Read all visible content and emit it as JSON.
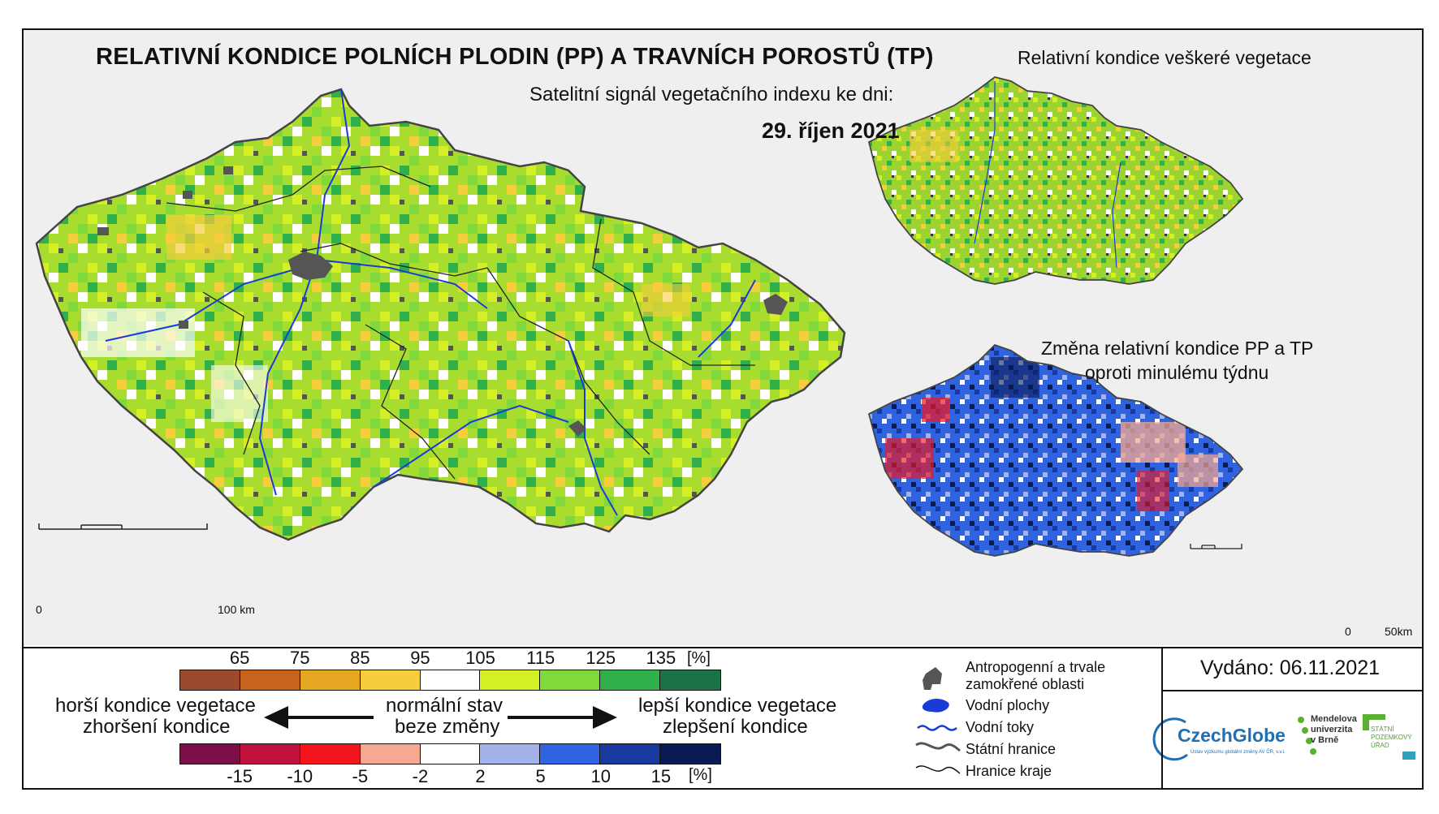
{
  "header": {
    "title": "RELATIVNÍ KONDICE POLNÍCH PLODIN (PP) A TRAVNÍCH POROSTŮ (TP)",
    "subtitle": "Satelitní signál vegetačního indexu ke dni:",
    "date": "29. říjen 2021"
  },
  "insets": {
    "top_title": "Relativní kondice veškeré vegetace",
    "bottom_title_line1": "Změna relativní kondice PP a TP",
    "bottom_title_line2": "oproti minulému týdnu"
  },
  "scalebars": {
    "main": {
      "start": "0",
      "end": "100 km"
    },
    "inset": {
      "start": "0",
      "end": "50km"
    }
  },
  "legend": {
    "condition_ramp": {
      "ticks": [
        "65",
        "75",
        "85",
        "95",
        "105",
        "115",
        "125",
        "135"
      ],
      "unit": "[%]",
      "colors": [
        "#9b4a2e",
        "#c7631f",
        "#e6a822",
        "#f6cd3c",
        "#ffffff",
        "#d5ef26",
        "#7fd93a",
        "#2fb04a",
        "#1a7448"
      ]
    },
    "change_ramp": {
      "ticks": [
        "-15",
        "-10",
        "-5",
        "-2",
        "2",
        "5",
        "10",
        "15"
      ],
      "unit": "[%]",
      "colors": [
        "#7b0f47",
        "#c1123e",
        "#f2161c",
        "#f7a892",
        "#ffffff",
        "#a3b3ea",
        "#2f63e0",
        "#18399e",
        "#0a1a55"
      ]
    },
    "left_line1": "horší kondice vegetace",
    "left_line2": "zhoršení kondice",
    "center_line1": "normální stav",
    "center_line2": "beze změny",
    "right_line1": "lepší kondice vegetace",
    "right_line2": "zlepšení kondice"
  },
  "symbols": {
    "anthropogenic_line1": "Antropogenní a trvale",
    "anthropogenic_line2": "zamokřené oblasti",
    "water_bodies": "Vodní plochy",
    "rivers": "Vodní toky",
    "state_border": "Státní hranice",
    "region_border": "Hranice kraje"
  },
  "issued": "Vydáno: 06.11.2021",
  "logos": {
    "czechglobe": "CzechGlobe",
    "czechglobe_sub": "Ústav výzkumu globální změny AV ČR, v.v.i.",
    "mendel_line1": "Mendelova",
    "mendel_line2": "univerzita",
    "mendel_line3": "v Brně",
    "spu_line1": "STÁTNÍ",
    "spu_line2": "POZEMKOVÝ",
    "spu_line3": "ÚŘAD"
  }
}
